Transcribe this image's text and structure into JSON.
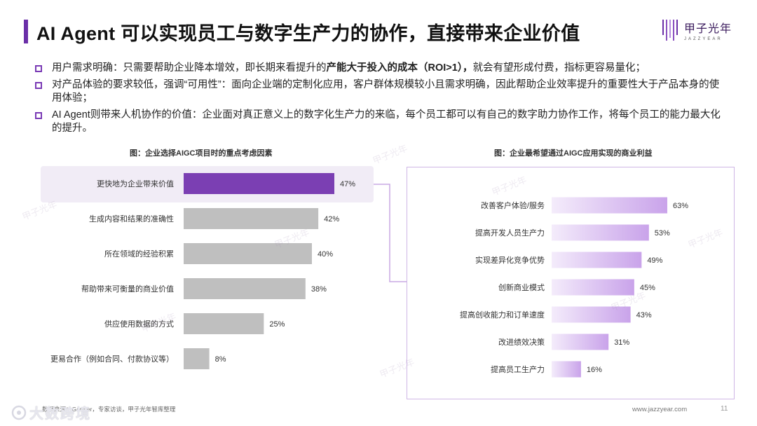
{
  "title": "AI Agent 可以实现员工与数字生产力的协作，直接带来企业价值",
  "logo": {
    "cn": "甲子光年",
    "en": "JAZZYEAR"
  },
  "bullets": [
    {
      "prefix": "用户需求明确：只需要帮助企业降本增效，即长期来看提升的",
      "bold": "产能大于投入的成本（ROI>1），",
      "suffix": "就会有望形成付费，指标更容易量化；"
    },
    {
      "prefix": "对产品体验的要求较低，强调“可用性”：面向企业端的定制化应用，客户群体规模较小且需求明确，因此帮助企业效率提升的重要性大于产品本身的使用体验；",
      "bold": "",
      "suffix": ""
    },
    {
      "prefix": "AI Agent则带来人机协作的价值：企业面对真正意义上的数字化生产力的来临，每个员工都可以有自己的数字助力协作工作，将每个员工的能力最大化的提升。",
      "bold": "",
      "suffix": ""
    }
  ],
  "chart_data": [
    {
      "type": "bar",
      "orientation": "horizontal",
      "title": "图：企业选择AIGC项目时的重点考虑因素",
      "categories": [
        "更快地为企业带来价值",
        "生成内容和结果的准确性",
        "所在领域的经验积累",
        "帮助带来可衡量的商业价值",
        "供应使用数据的方式",
        "更易合作（例如合同、付款协议等）"
      ],
      "values": [
        47,
        42,
        40,
        38,
        25,
        8
      ],
      "value_labels": [
        "47%",
        "42%",
        "40%",
        "38%",
        "25%",
        "8%"
      ],
      "unit": "%",
      "highlight_index": 0,
      "colors": {
        "highlight": "#7b3fb3",
        "default": "#bfbfbf"
      }
    },
    {
      "type": "bar",
      "orientation": "horizontal",
      "title": "图：企业最希望通过AIGC应用实现的商业利益",
      "categories": [
        "改善客户体验/服务",
        "提高开发人员生产力",
        "实现差异化竞争优势",
        "创新商业模式",
        "提高创收能力和订单速度",
        "改进绩效决策",
        "提高员工生产力"
      ],
      "values": [
        63,
        53,
        49,
        45,
        43,
        31,
        16
      ],
      "value_labels": [
        "63%",
        "53%",
        "49%",
        "45%",
        "43%",
        "31%",
        "16%"
      ],
      "unit": "%",
      "colors": {
        "gradient_start": "#f4ecfb",
        "gradient_end": "#c9a3ea"
      }
    }
  ],
  "footer": {
    "source": "数据来源：Gartner，专家访谈，甲子光年智库整理",
    "url": "www.jazzyear.com",
    "page": "11",
    "brand": "大数跨境"
  },
  "watermark_text": "甲子光年"
}
